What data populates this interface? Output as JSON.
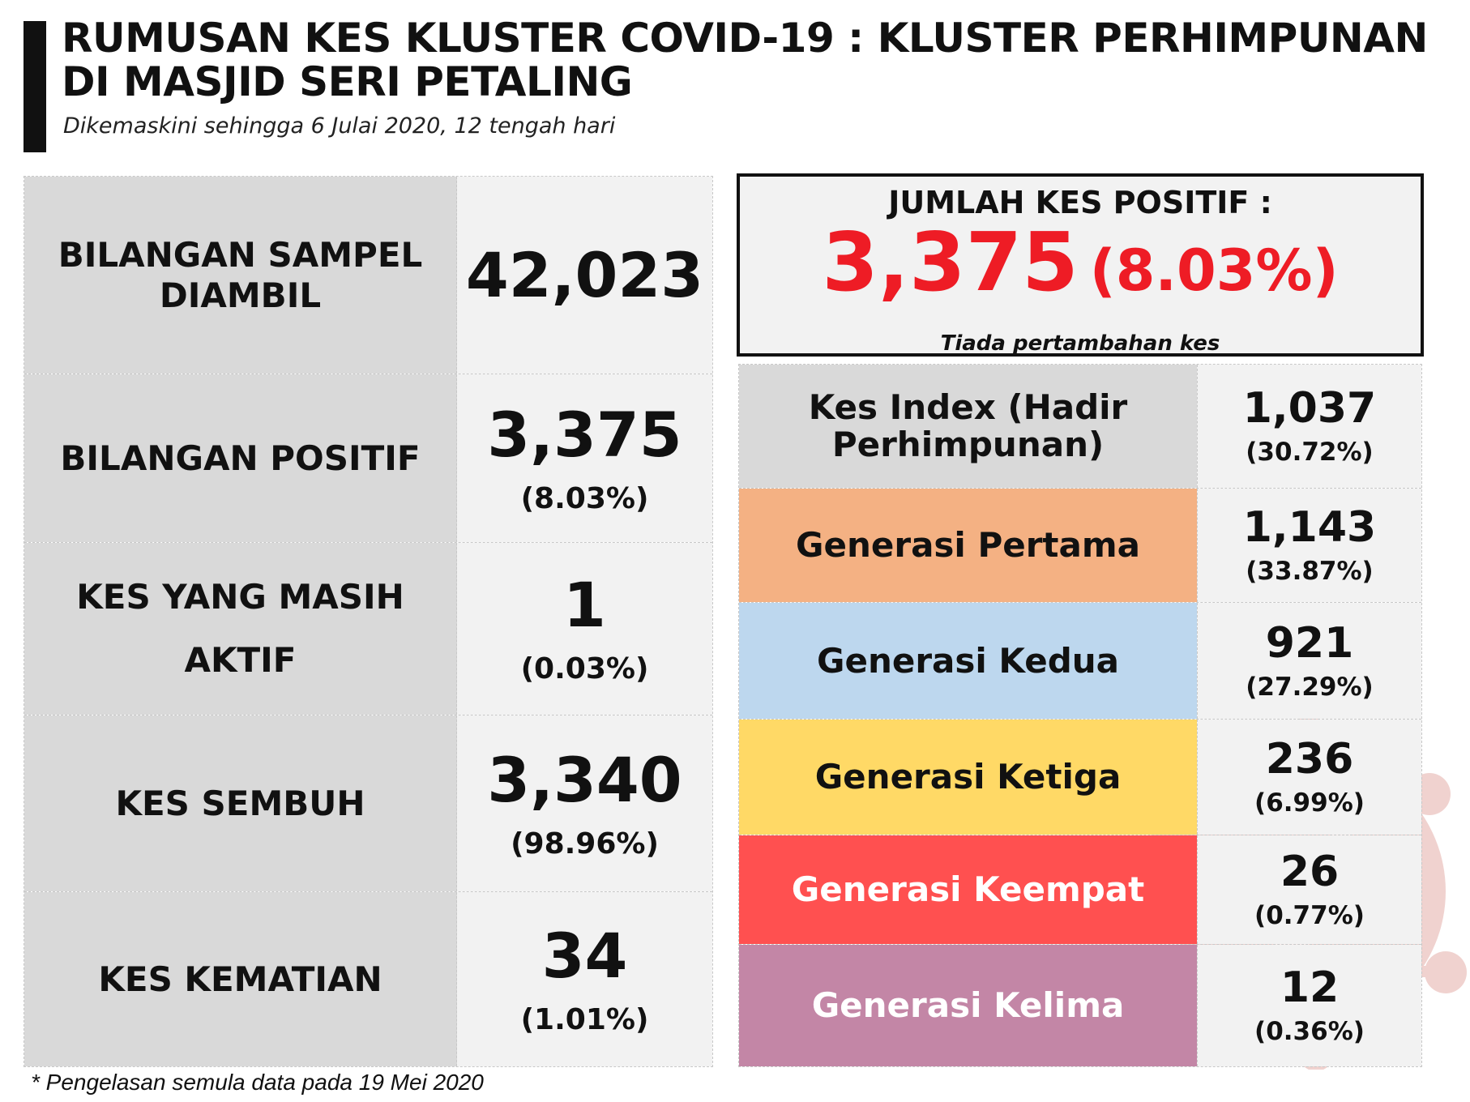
{
  "header": {
    "title": "RUMUSAN KES KLUSTER COVID-19 : KLUSTER PERHIMPUNAN DI MASJID SERI PETALING",
    "subtitle": "Dikemaskini sehingga 6 Julai 2020, 12 tengah hari"
  },
  "left_table": [
    {
      "label": "BILANGAN SAMPEL DIAMBIL",
      "value": "42,023",
      "pct": ""
    },
    {
      "label": "BILANGAN POSITIF",
      "value": "3,375",
      "pct": "(8.03%)"
    },
    {
      "label": "KES YANG MASIH AKTIF",
      "value": "1",
      "pct": "(0.03%)"
    },
    {
      "label": "KES SEMBUH",
      "value": "3,340",
      "pct": "(98.96%)"
    },
    {
      "label": "KES KEMATIAN",
      "value": "34",
      "pct": "(1.01%)"
    }
  ],
  "total": {
    "label": "JUMLAH KES POSITIF :",
    "value": "3,375",
    "pct": "(8.03%)",
    "note": "Tiada pertambahan kes",
    "color": "#ee1c25"
  },
  "right_table": [
    {
      "label": "Kes Index (Hadir Perhimpunan)",
      "value": "1,037",
      "pct": "(30.72%)",
      "bg": "#d9d9d9",
      "text_color": "#111111"
    },
    {
      "label": "Generasi Pertama",
      "value": "1,143",
      "pct": "(33.87%)",
      "bg": "#f4b183",
      "text_color": "#111111"
    },
    {
      "label": "Generasi Kedua",
      "value": "921",
      "pct": "(27.29%)",
      "bg": "#bdd7ee",
      "text_color": "#111111"
    },
    {
      "label": "Generasi Ketiga",
      "value": "236",
      "pct": "(6.99%)",
      "bg": "#ffd966",
      "text_color": "#111111"
    },
    {
      "label": "Generasi Keempat",
      "value": "26",
      "pct": "(0.77%)",
      "bg": "#ff5050",
      "text_color": "#ffffff"
    },
    {
      "label": "Generasi Kelima",
      "value": "12",
      "pct": "(0.36%)",
      "bg": "#c386a6",
      "text_color": "#ffffff"
    }
  ],
  "footnote": "* Pengelasan semula data pada 19 Mei 2020"
}
